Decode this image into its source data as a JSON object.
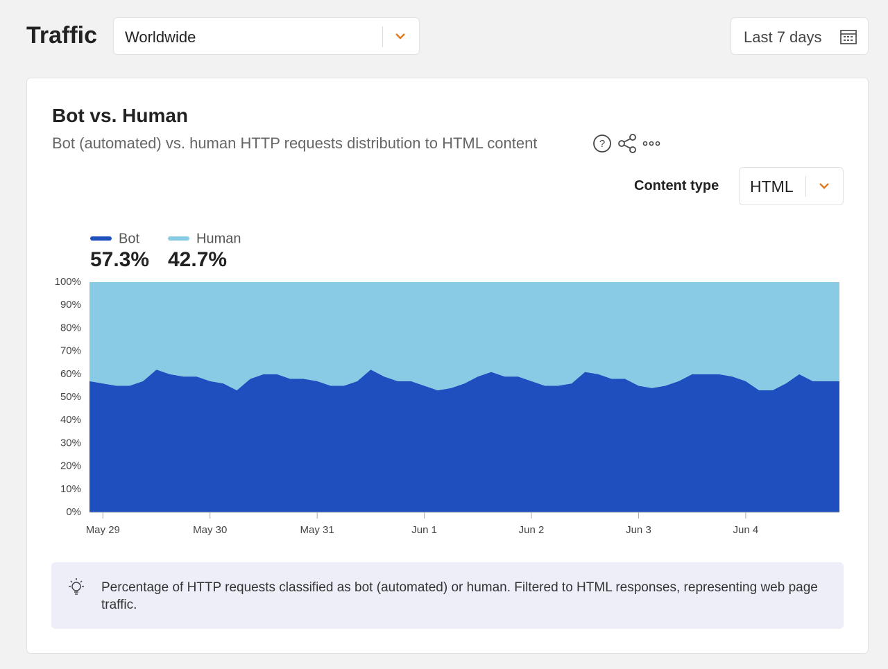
{
  "header": {
    "title": "Traffic",
    "region": "Worldwide",
    "period": "Last 7 days"
  },
  "card": {
    "title": "Bot vs. Human",
    "subtitle": "Bot (automated) vs. human HTTP requests distribution to HTML content",
    "content_type_label": "Content type",
    "content_type_value": "HTML"
  },
  "chart_data": {
    "type": "stacked-area",
    "categories": [
      null,
      "May 29",
      null,
      null,
      null,
      null,
      null,
      null,
      null,
      "May 30",
      null,
      null,
      null,
      null,
      null,
      null,
      null,
      "May 31",
      null,
      null,
      null,
      null,
      null,
      null,
      null,
      "Jun 1",
      null,
      null,
      null,
      null,
      null,
      null,
      null,
      "Jun 2",
      null,
      null,
      null,
      null,
      null,
      null,
      null,
      "Jun 3",
      null,
      null,
      null,
      null,
      null,
      null,
      null,
      "Jun 4",
      null,
      null,
      null,
      null,
      null,
      null,
      null
    ],
    "series": [
      {
        "name": "Bot",
        "color": "#1f4fbf",
        "summary": "57.3%",
        "values": [
          57,
          56,
          55,
          55,
          57,
          62,
          60,
          59,
          59,
          57,
          56,
          53,
          58,
          60,
          60,
          58,
          58,
          57,
          55,
          55,
          57,
          62,
          59,
          57,
          57,
          55,
          53,
          54,
          56,
          59,
          61,
          59,
          59,
          57,
          55,
          55,
          56,
          61,
          60,
          58,
          58,
          55,
          54,
          55,
          57,
          60,
          60,
          60,
          59,
          57,
          53,
          53,
          56,
          60,
          57,
          57,
          57
        ]
      },
      {
        "name": "Human",
        "color": "#89cbe4",
        "summary": "42.7%",
        "values": [
          43,
          44,
          45,
          45,
          43,
          38,
          40,
          41,
          41,
          43,
          44,
          47,
          42,
          40,
          40,
          42,
          42,
          43,
          45,
          45,
          43,
          38,
          41,
          43,
          43,
          45,
          47,
          46,
          44,
          41,
          39,
          41,
          41,
          43,
          45,
          45,
          44,
          39,
          40,
          42,
          42,
          45,
          46,
          45,
          43,
          40,
          40,
          40,
          41,
          43,
          47,
          47,
          44,
          40,
          43,
          43,
          43
        ]
      }
    ],
    "ylim": [
      0,
      100
    ],
    "yticks": [
      {
        "value": 0,
        "label": "0%"
      },
      {
        "value": 10,
        "label": "10%"
      },
      {
        "value": 20,
        "label": "20%"
      },
      {
        "value": 30,
        "label": "30%"
      },
      {
        "value": 40,
        "label": "40%"
      },
      {
        "value": 50,
        "label": "50%"
      },
      {
        "value": 60,
        "label": "60%"
      },
      {
        "value": 70,
        "label": "70%"
      },
      {
        "value": 80,
        "label": "80%"
      },
      {
        "value": 90,
        "label": "90%"
      },
      {
        "value": 100,
        "label": "100%"
      }
    ]
  },
  "note": "Percentage of HTTP requests classified as bot (automated) or human. Filtered to HTML responses, representing web page traffic."
}
